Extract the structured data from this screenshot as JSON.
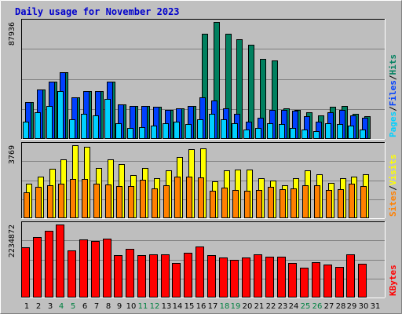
{
  "chart_data": {
    "type": "bar",
    "title": "Daily usage for November 2023",
    "days": [
      "1",
      "2",
      "3",
      "4",
      "5",
      "6",
      "7",
      "8",
      "9",
      "10",
      "11",
      "12",
      "13",
      "14",
      "15",
      "16",
      "17",
      "18",
      "19",
      "20",
      "21",
      "22",
      "23",
      "24",
      "25",
      "26",
      "27",
      "28",
      "29",
      "30",
      "31"
    ],
    "weekend_days": [
      4,
      5,
      11,
      12,
      18,
      19,
      25,
      26
    ],
    "colors": {
      "background": "#c0c0c0",
      "panel": "#bebebe",
      "title": "#0000cc",
      "hits": "#00805f",
      "files": "#0040ff",
      "pages": "#00d0ff",
      "visits": "#ffff00",
      "sites": "#ff8000",
      "kbytes": "#ff0000",
      "weekend_label": "#008040",
      "weekday_label": "#000000"
    },
    "panels": [
      {
        "name": "hits-files-pages",
        "ymax_label": "87936",
        "ymax": 87936,
        "legend": [
          {
            "text": "Hits",
            "color": "#00805f"
          },
          {
            "text": "Files",
            "color": "#0040ff"
          },
          {
            "text": "Pages",
            "color": "#00d0ff"
          }
        ],
        "series": [
          {
            "name": "Hits",
            "color": "#00805f",
            "values": [
              28000,
              37000,
              43000,
              50000,
              31000,
              36000,
              36000,
              43000,
              26000,
              25000,
              25000,
              24000,
              22000,
              23000,
              25000,
              79000,
              87936,
              79000,
              75000,
              71000,
              60000,
              59000,
              23000,
              22000,
              20000,
              18000,
              24000,
              25000,
              19000,
              17000
            ]
          },
          {
            "name": "Files",
            "color": "#0040ff",
            "values": [
              28000,
              37000,
              43000,
              50000,
              31000,
              36000,
              36000,
              43000,
              26000,
              25000,
              25000,
              24000,
              22000,
              23000,
              25000,
              31000,
              29000,
              23000,
              19000,
              13000,
              16000,
              22000,
              22000,
              21000,
              17000,
              13000,
              20000,
              22000,
              18000,
              16000
            ]
          },
          {
            "name": "Pages",
            "color": "#00d0ff",
            "values": [
              13000,
              20000,
              25000,
              36000,
              15000,
              19000,
              18000,
              30000,
              12000,
              8000,
              9000,
              10000,
              12000,
              13000,
              11000,
              15000,
              19000,
              15000,
              12000,
              7000,
              8000,
              12000,
              11000,
              8000,
              7000,
              6000,
              12000,
              11000,
              10000,
              7000
            ]
          }
        ]
      },
      {
        "name": "visits-sites",
        "ymax_label": "3769",
        "ymax": 3769,
        "legend": [
          {
            "text": "Visits",
            "color": "#ffff00"
          },
          {
            "text": "Sites",
            "color": "#ff8000"
          }
        ],
        "series": [
          {
            "name": "Visits",
            "color": "#ffff00",
            "values": [
              1800,
              2140,
              2550,
              3040,
              3769,
              3670,
              2590,
              3040,
              2800,
              2230,
              2610,
              2060,
              2460,
              3180,
              3560,
              3620,
              1910,
              2460,
              2520,
              2530,
              2070,
              1960,
              1700,
              2060,
              2490,
              2250,
              1820,
              2070,
              2160,
              2250
            ]
          },
          {
            "name": "Sites",
            "color": "#ff8000",
            "values": [
              1350,
              1640,
              1720,
              1770,
              2040,
              2010,
              1780,
              1760,
              1650,
              1680,
              1990,
              1530,
              1720,
              2130,
              2150,
              2090,
              1420,
              1570,
              1470,
              1420,
              1450,
              1640,
              1510,
              1560,
              1710,
              1690,
              1440,
              1500,
              1800,
              1660
            ]
          }
        ]
      },
      {
        "name": "kbytes",
        "ymax_label": "2234872",
        "ymax": 2234872,
        "legend": [
          {
            "text": "KBytes",
            "color": "#ff0000"
          }
        ],
        "series": [
          {
            "name": "KBytes",
            "color": "#ff0000",
            "values": [
              1528000,
              1860000,
              2040000,
              2234872,
              1440000,
              1770000,
              1740000,
              1810000,
              1290000,
              1500000,
              1290000,
              1330000,
              1310000,
              1060000,
              1380000,
              1570000,
              1290000,
              1220000,
              1160000,
              1220000,
              1320000,
              1250000,
              1250000,
              1060000,
              920000,
              1080000,
              1000000,
              930000,
              1320000,
              1030000
            ]
          }
        ]
      }
    ]
  }
}
